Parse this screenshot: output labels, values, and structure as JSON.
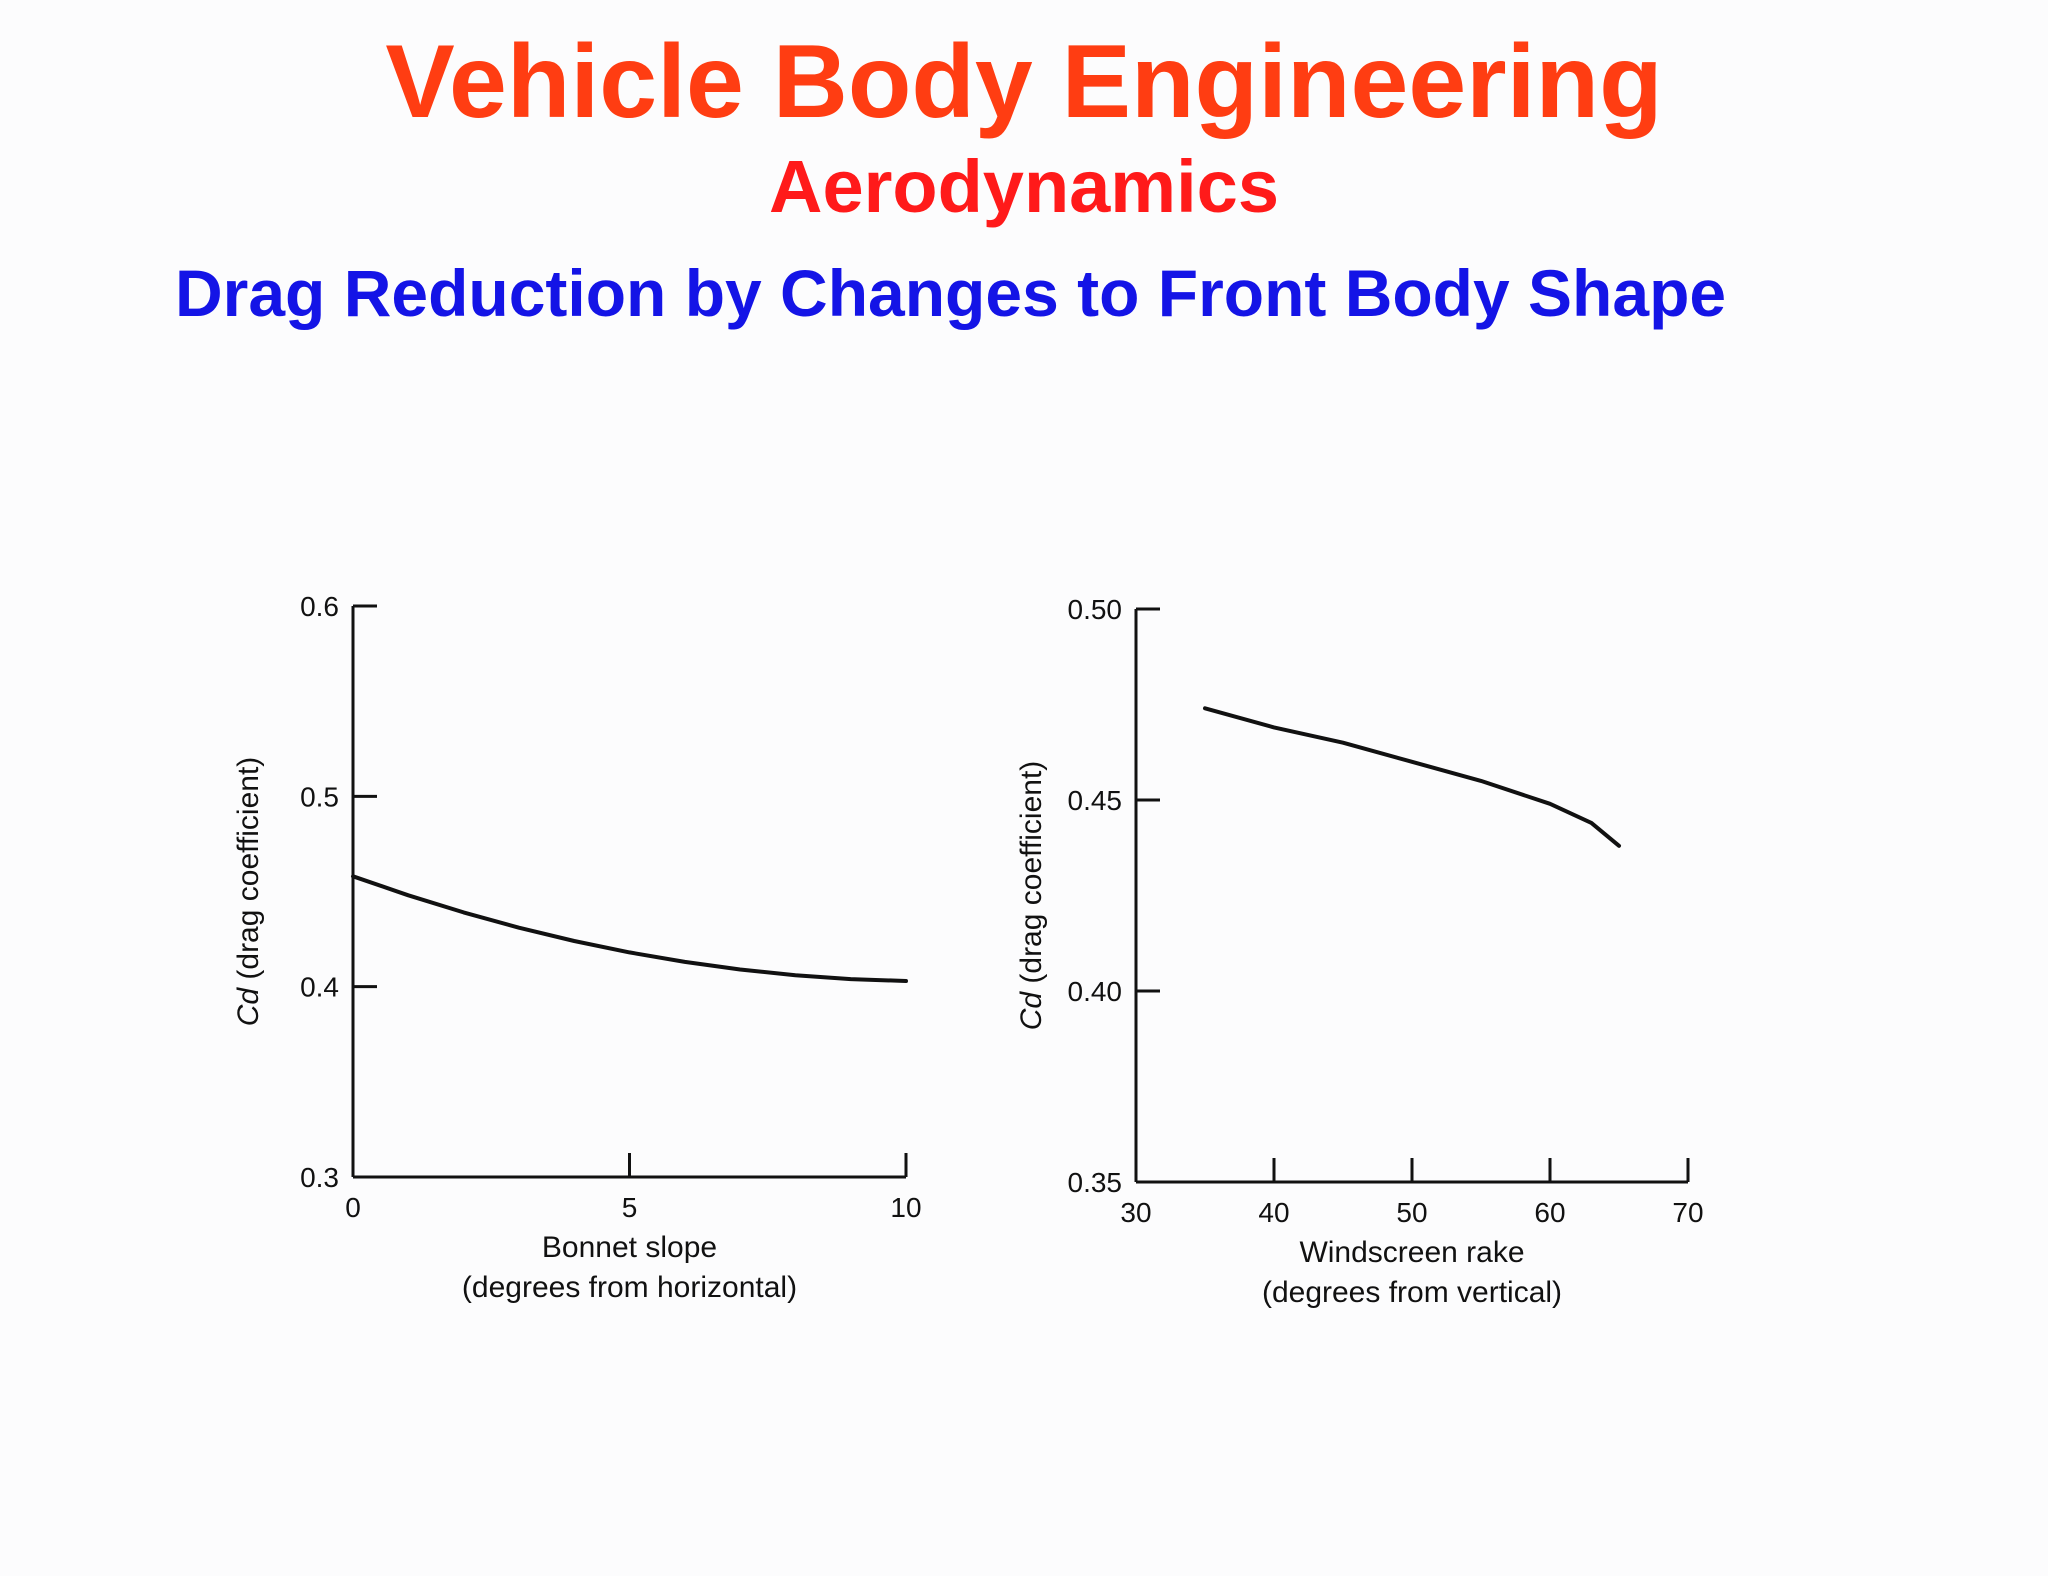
{
  "slide": {
    "title": "Vehicle Body Engineering",
    "subtitle": "Aerodynamics",
    "heading": "Drag Reduction by Changes to Front Body Shape",
    "colors": {
      "title": "#ff3d12",
      "subtitle": "#ff1a1a",
      "heading": "#1414e6",
      "ink": "#111111"
    }
  },
  "chart_data": [
    {
      "type": "line",
      "xlim": [
        0,
        10
      ],
      "ylim": [
        0.3,
        0.6
      ],
      "x_ticks": [
        "0",
        "5",
        "10"
      ],
      "x_tick_values": [
        0,
        5,
        10
      ],
      "y_ticks": [
        "0.3",
        "0.4",
        "0.5",
        "0.6"
      ],
      "y_tick_values": [
        0.3,
        0.4,
        0.5,
        0.6
      ],
      "xlabel": [
        "Bonnet slope",
        "(degrees from horizontal)"
      ],
      "ylabel": {
        "symbol": "Cd",
        "text": " (drag coefficient)"
      },
      "grid": false,
      "series": [
        {
          "x": [
            0,
            1,
            2,
            3,
            4,
            5,
            6,
            7,
            8,
            9,
            10
          ],
          "y": [
            0.458,
            0.448,
            0.439,
            0.431,
            0.424,
            0.418,
            0.413,
            0.409,
            0.406,
            0.404,
            0.403
          ]
        }
      ]
    },
    {
      "type": "line",
      "xlim": [
        30,
        70
      ],
      "ylim": [
        0.35,
        0.5
      ],
      "x_ticks": [
        "30",
        "40",
        "50",
        "60",
        "70"
      ],
      "x_tick_values": [
        30,
        40,
        50,
        60,
        70
      ],
      "y_ticks": [
        "0.35",
        "0.40",
        "0.45",
        "0.50"
      ],
      "y_tick_values": [
        0.35,
        0.4,
        0.45,
        0.5
      ],
      "xlabel": [
        "Windscreen rake",
        "(degrees from vertical)"
      ],
      "ylabel": {
        "symbol": "Cd",
        "text": " (drag coefficient)"
      },
      "grid": false,
      "series": [
        {
          "x": [
            35,
            40,
            45,
            50,
            55,
            60,
            63,
            65
          ],
          "y": [
            0.474,
            0.469,
            0.465,
            0.46,
            0.455,
            0.449,
            0.444,
            0.438
          ]
        }
      ]
    }
  ]
}
